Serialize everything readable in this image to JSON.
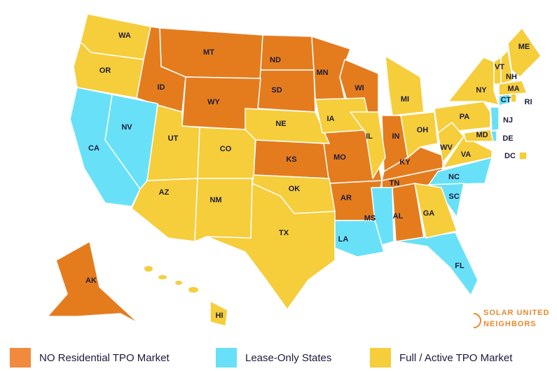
{
  "legend": [
    {
      "label": "NO Residential TPO Market",
      "color": "#e47c1e",
      "swatch": "#f28a3e",
      "states": [
        "MT",
        "ND",
        "MN",
        "WI",
        "ID",
        "SD",
        "WY",
        "KS",
        "MO",
        "IN",
        "KY",
        "TN",
        "AR",
        "AL",
        "AK"
      ]
    },
    {
      "label": "Lease-Only States",
      "color": "#68e1f8",
      "swatch": "#68e1f8",
      "states": [
        "NV",
        "CA",
        "NC",
        "SC",
        "MS",
        "LA",
        "FL",
        "CT",
        "NJ",
        "DE"
      ]
    },
    {
      "label": "Full / Active TPO Market",
      "color": "#f6cd3b",
      "swatch": "#f6cd3b",
      "states": [
        "WA",
        "OR",
        "UT",
        "AZ",
        "CO",
        "NM",
        "NE",
        "IA",
        "OK",
        "TX",
        "IL",
        "MI",
        "OH",
        "PA",
        "NY",
        "VT",
        "NH",
        "ME",
        "MA",
        "RI",
        "WV",
        "VA",
        "MD",
        "GA",
        "DC",
        "HI"
      ]
    }
  ],
  "logo": [
    "SOLAR UNITED",
    "NEIGHBORS"
  ]
}
